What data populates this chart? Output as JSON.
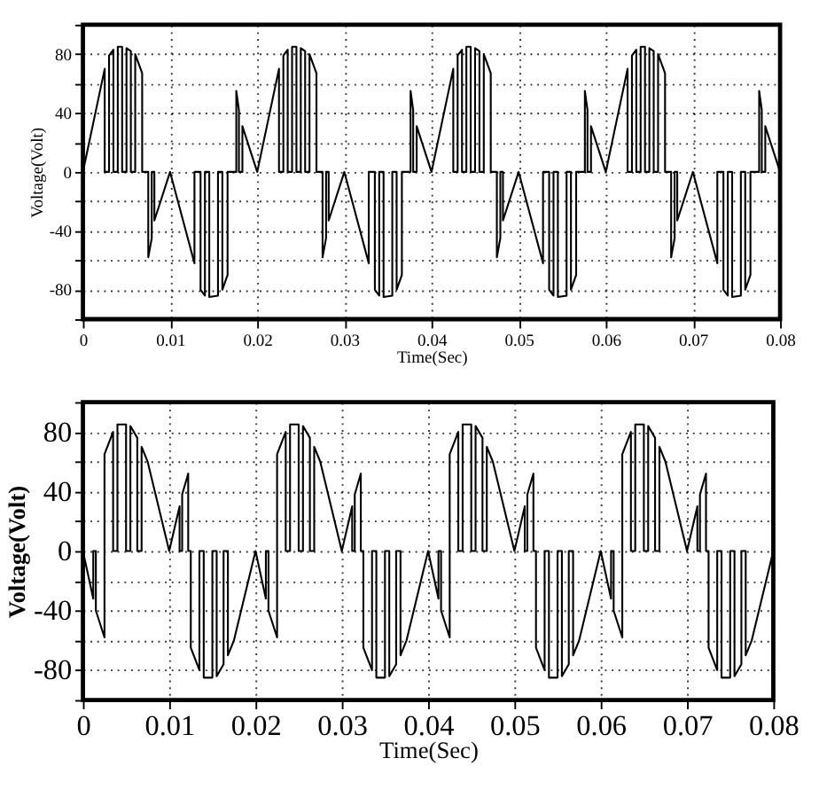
{
  "chart_data": [
    {
      "type": "line",
      "xlabel": "Time(Sec)",
      "ylabel": "Voltage(Volt)",
      "xlim": [
        0,
        0.08
      ],
      "ylim": [
        -100,
        100
      ],
      "xticks": [
        0,
        0.01,
        0.02,
        0.03,
        0.04,
        0.05,
        0.06,
        0.07,
        0.08
      ],
      "yticks": [
        {
          "value": -100,
          "label": null
        },
        -80,
        {
          "value": -60,
          "label": null
        },
        -40,
        {
          "value": -20,
          "label": null
        },
        0,
        {
          "value": 20,
          "label": null
        },
        40,
        {
          "value": 60,
          "label": null
        },
        80,
        {
          "value": 100,
          "label": null
        }
      ],
      "grid": true,
      "marker": "none",
      "line_style": "solid",
      "series": [
        {
          "color": "#000000",
          "x": [
            0,
            0.0025,
            0.0025,
            0.003,
            0.003,
            0.0035,
            0.0035,
            0.004,
            0.004,
            0.0045,
            0.0045,
            0.005,
            0.005,
            0.0055,
            0.0055,
            0.006,
            0.006,
            0.0068,
            0.0068,
            0.0075,
            0.0075,
            0.0079,
            0.0079,
            0.0082,
            0.0082,
            0.01,
            0.0128,
            0.0128,
            0.0135,
            0.0135,
            0.014,
            0.014,
            0.0145,
            0.0145,
            0.0155,
            0.0155,
            0.016,
            0.016,
            0.0166,
            0.0166,
            0.0176,
            0.0176,
            0.0179,
            0.0179,
            0.0183,
            0.0183,
            0.02,
            0.0225,
            0.0225,
            0.023,
            0.023,
            0.0235,
            0.0235,
            0.024,
            0.024,
            0.0245,
            0.0245,
            0.025,
            0.025,
            0.0255,
            0.0255,
            0.026,
            0.026,
            0.0268,
            0.0268,
            0.0275,
            0.0275,
            0.0279,
            0.0279,
            0.0282,
            0.0282,
            0.03,
            0.0328,
            0.0328,
            0.0335,
            0.0335,
            0.034,
            0.034,
            0.0345,
            0.0345,
            0.0355,
            0.0355,
            0.036,
            0.036,
            0.0366,
            0.0366,
            0.0376,
            0.0376,
            0.0379,
            0.0379,
            0.0383,
            0.0383,
            0.04,
            0.0425,
            0.0425,
            0.043,
            0.043,
            0.0435,
            0.0435,
            0.044,
            0.044,
            0.0445,
            0.0445,
            0.045,
            0.045,
            0.0455,
            0.0455,
            0.046,
            0.046,
            0.0468,
            0.0468,
            0.0475,
            0.0475,
            0.0479,
            0.0479,
            0.0482,
            0.0482,
            0.05,
            0.0528,
            0.0528,
            0.0535,
            0.0535,
            0.054,
            0.054,
            0.0545,
            0.0545,
            0.0555,
            0.0555,
            0.056,
            0.056,
            0.0566,
            0.0566,
            0.0576,
            0.0576,
            0.0579,
            0.0579,
            0.0583,
            0.0583,
            0.06,
            0.0625,
            0.0625,
            0.063,
            0.063,
            0.0635,
            0.0635,
            0.064,
            0.064,
            0.0645,
            0.0645,
            0.065,
            0.065,
            0.0655,
            0.0655,
            0.066,
            0.066,
            0.0668,
            0.0668,
            0.0675,
            0.0675,
            0.0679,
            0.0679,
            0.0682,
            0.0682,
            0.07,
            0.0728,
            0.0728,
            0.0735,
            0.0735,
            0.074,
            0.074,
            0.0745,
            0.0745,
            0.0755,
            0.0755,
            0.076,
            0.076,
            0.0766,
            0.0766,
            0.0776,
            0.0776,
            0.0779,
            0.0779,
            0.0783,
            0.0783,
            0.08
          ],
          "values": [
            0,
            70,
            0,
            0,
            79,
            83,
            0,
            0,
            85,
            85,
            0,
            0,
            84,
            82,
            0,
            0,
            80,
            67,
            0,
            0,
            -58,
            -45,
            0,
            0,
            -33,
            0,
            -62,
            0,
            0,
            -80,
            -84,
            0,
            0,
            -85,
            -84,
            0,
            0,
            -80,
            -70,
            0,
            0,
            55,
            42,
            0,
            0,
            31,
            0,
            70,
            0,
            0,
            79,
            83,
            0,
            0,
            85,
            85,
            0,
            0,
            84,
            82,
            0,
            0,
            80,
            67,
            0,
            0,
            -58,
            -45,
            0,
            0,
            -33,
            0,
            -62,
            0,
            0,
            -80,
            -84,
            0,
            0,
            -85,
            -84,
            0,
            0,
            -80,
            -70,
            0,
            0,
            55,
            42,
            0,
            0,
            31,
            0,
            70,
            0,
            0,
            79,
            83,
            0,
            0,
            85,
            85,
            0,
            0,
            84,
            82,
            0,
            0,
            80,
            67,
            0,
            0,
            -58,
            -45,
            0,
            0,
            -33,
            0,
            -62,
            0,
            0,
            -80,
            -84,
            0,
            0,
            -85,
            -84,
            0,
            0,
            -80,
            -70,
            0,
            0,
            55,
            42,
            0,
            0,
            31,
            0,
            70,
            0,
            0,
            79,
            83,
            0,
            0,
            85,
            85,
            0,
            0,
            84,
            82,
            0,
            0,
            80,
            67,
            0,
            0,
            -58,
            -45,
            0,
            0,
            -33,
            0,
            -62,
            0,
            0,
            -80,
            -84,
            0,
            0,
            -85,
            -84,
            0,
            0,
            -80,
            -70,
            0,
            0,
            55,
            42,
            0,
            0,
            31,
            0
          ]
        }
      ]
    },
    {
      "type": "line",
      "xlabel": "Time(Sec)",
      "ylabel": "Voltage(Volt)",
      "xlim": [
        0,
        0.08
      ],
      "ylim": [
        -100,
        100
      ],
      "xticks": [
        0,
        0.01,
        0.02,
        0.03,
        0.04,
        0.05,
        0.06,
        0.07,
        0.08
      ],
      "yticks": [
        {
          "value": -100,
          "label": null
        },
        -80,
        {
          "value": -60,
          "label": null
        },
        -40,
        {
          "value": -20,
          "label": null
        },
        0,
        {
          "value": 20,
          "label": null
        },
        40,
        {
          "value": 60,
          "label": null
        },
        80,
        {
          "value": 100,
          "label": null
        }
      ],
      "grid": true,
      "marker": "none",
      "line_style": "solid",
      "series": [
        {
          "color": "#000000",
          "x": [
            0,
            0.0012,
            0.0012,
            0.0015,
            0.0015,
            0.0025,
            0.0025,
            0.0035,
            0.0035,
            0.004,
            0.004,
            0.005,
            0.005,
            0.0055,
            0.0055,
            0.0063,
            0.0063,
            0.0068,
            0.0068,
            0.0075,
            0.01,
            0.0112,
            0.0112,
            0.0115,
            0.0115,
            0.0122,
            0.0122,
            0.0125,
            0.0125,
            0.0135,
            0.0135,
            0.014,
            0.014,
            0.015,
            0.015,
            0.0155,
            0.0155,
            0.0163,
            0.0163,
            0.0168,
            0.0168,
            0.0175,
            0.02,
            0.0212,
            0.0212,
            0.0215,
            0.0215,
            0.0225,
            0.0225,
            0.0235,
            0.0235,
            0.024,
            0.024,
            0.025,
            0.025,
            0.0255,
            0.0255,
            0.0263,
            0.0263,
            0.0268,
            0.0268,
            0.0275,
            0.03,
            0.0312,
            0.0312,
            0.0315,
            0.0315,
            0.0322,
            0.0322,
            0.0325,
            0.0325,
            0.0335,
            0.0335,
            0.034,
            0.034,
            0.035,
            0.035,
            0.0355,
            0.0355,
            0.0363,
            0.0363,
            0.0368,
            0.0368,
            0.0375,
            0.04,
            0.0412,
            0.0412,
            0.0415,
            0.0415,
            0.0425,
            0.0425,
            0.0435,
            0.0435,
            0.044,
            0.044,
            0.045,
            0.045,
            0.0455,
            0.0455,
            0.0463,
            0.0463,
            0.0468,
            0.0468,
            0.0475,
            0.05,
            0.0512,
            0.0512,
            0.0515,
            0.0515,
            0.0522,
            0.0522,
            0.0525,
            0.0525,
            0.0535,
            0.0535,
            0.054,
            0.054,
            0.055,
            0.055,
            0.0555,
            0.0555,
            0.0563,
            0.0563,
            0.0568,
            0.0568,
            0.0575,
            0.06,
            0.0612,
            0.0612,
            0.0615,
            0.0615,
            0.0625,
            0.0625,
            0.0635,
            0.0635,
            0.064,
            0.064,
            0.065,
            0.065,
            0.0655,
            0.0655,
            0.0663,
            0.0663,
            0.0668,
            0.0668,
            0.0675,
            0.07,
            0.0712,
            0.0712,
            0.0715,
            0.0715,
            0.0722,
            0.0722,
            0.0725,
            0.0725,
            0.0735,
            0.0735,
            0.074,
            0.074,
            0.075,
            0.075,
            0.0755,
            0.0755,
            0.0763,
            0.0763,
            0.0768,
            0.0768,
            0.0775,
            0.08
          ],
          "values": [
            0,
            -32,
            0,
            0,
            -40,
            -58,
            65,
            80,
            0,
            0,
            85,
            85,
            0,
            0,
            84,
            76,
            0,
            0,
            70,
            60,
            0,
            30,
            0,
            0,
            38,
            52,
            0,
            0,
            -65,
            -80,
            0,
            0,
            -85,
            -85,
            0,
            0,
            -84,
            -76,
            0,
            0,
            -70,
            -60,
            0,
            -32,
            0,
            0,
            -40,
            -58,
            65,
            80,
            0,
            0,
            85,
            85,
            0,
            0,
            84,
            76,
            0,
            0,
            70,
            60,
            0,
            30,
            0,
            0,
            38,
            52,
            0,
            0,
            -65,
            -80,
            0,
            0,
            -85,
            -85,
            0,
            0,
            -84,
            -76,
            0,
            0,
            -70,
            -60,
            0,
            -32,
            0,
            0,
            -40,
            -58,
            65,
            80,
            0,
            0,
            85,
            85,
            0,
            0,
            84,
            76,
            0,
            0,
            70,
            60,
            0,
            30,
            0,
            0,
            38,
            52,
            0,
            0,
            -65,
            -80,
            0,
            0,
            -85,
            -85,
            0,
            0,
            -84,
            -76,
            0,
            0,
            -70,
            -60,
            0,
            -32,
            0,
            0,
            -40,
            -58,
            65,
            80,
            0,
            0,
            85,
            85,
            0,
            0,
            84,
            76,
            0,
            0,
            70,
            60,
            0,
            30,
            0,
            0,
            38,
            52,
            0,
            0,
            -65,
            -80,
            0,
            0,
            -85,
            -85,
            0,
            0,
            -84,
            -76,
            0,
            0,
            -70,
            -60,
            0
          ]
        }
      ]
    }
  ]
}
